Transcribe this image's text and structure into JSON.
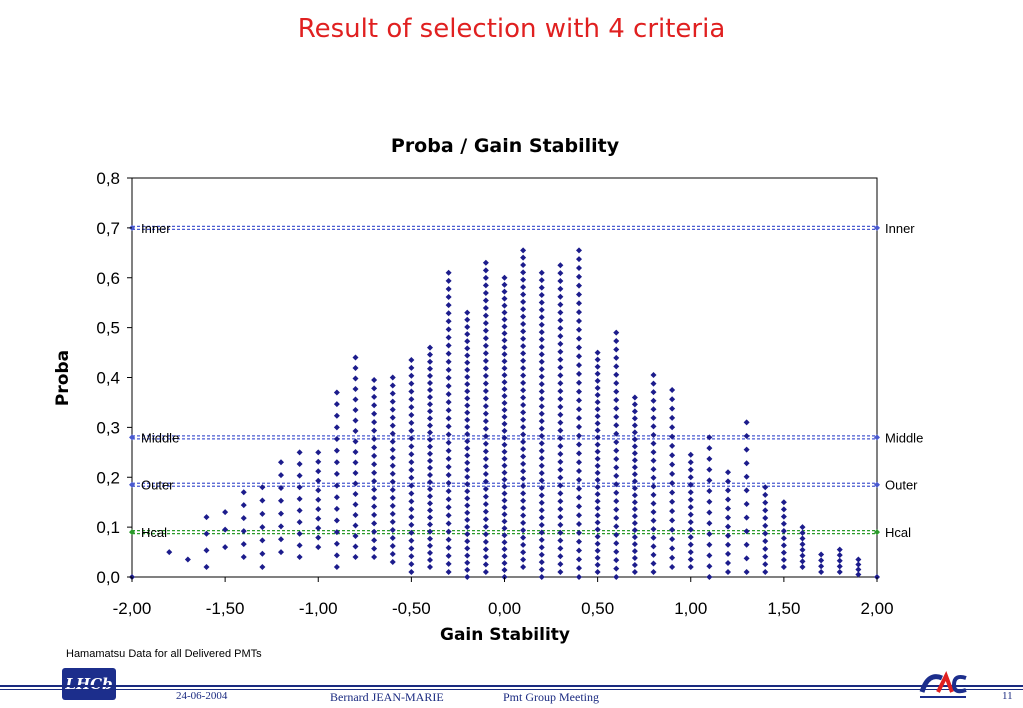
{
  "slide": {
    "title": "Result of selection with 4 criteria",
    "note": "Hamamatsu Data for all Delivered PMTs"
  },
  "footer": {
    "date": "24-06-2004",
    "author": "Bernard JEAN-MARIE",
    "meeting": "Pmt Group Meeting",
    "page": "11",
    "logo_left_text": "LHCb",
    "logo_right_text": "CAC"
  },
  "colors": {
    "title": "#e02020",
    "points": "#1c1c8c",
    "ref_blue": "#4a5ad0",
    "ref_green": "#2a9a2a"
  },
  "chart_data": {
    "type": "scatter",
    "title": "Proba / Gain Stability",
    "xlabel": "Gain Stability",
    "ylabel": "Proba",
    "xlim": [
      -2.0,
      2.0
    ],
    "ylim": [
      0.0,
      0.8
    ],
    "x_ticks": [
      "-2,00",
      "-1,50",
      "-1,00",
      "-0,50",
      "0,00",
      "0,50",
      "1,00",
      "1,50",
      "2,00"
    ],
    "y_ticks": [
      "0,0",
      "0,1",
      "0,2",
      "0,3",
      "0,4",
      "0,5",
      "0,6",
      "0,7",
      "0,8"
    ],
    "grid": false,
    "reference_lines": [
      {
        "name": "Inner",
        "y": 0.7,
        "color": "#4a5ad0"
      },
      {
        "name": "Middle",
        "y": 0.28,
        "color": "#4a5ad0"
      },
      {
        "name": "Outer",
        "y": 0.185,
        "color": "#4a5ad0"
      },
      {
        "name": "Hcal",
        "y": 0.09,
        "color": "#2a9a2a"
      }
    ],
    "columns": [
      {
        "x": -2.0,
        "ymin": 0.0,
        "ymax": 0.0,
        "n": 1
      },
      {
        "x": -1.8,
        "ymin": 0.05,
        "ymax": 0.05,
        "n": 1
      },
      {
        "x": -1.7,
        "ymin": 0.035,
        "ymax": 0.035,
        "n": 1
      },
      {
        "x": -1.6,
        "ymin": 0.02,
        "ymax": 0.12,
        "n": 4
      },
      {
        "x": -1.5,
        "ymin": 0.06,
        "ymax": 0.13,
        "n": 3
      },
      {
        "x": -1.4,
        "ymin": 0.04,
        "ymax": 0.17,
        "n": 6
      },
      {
        "x": -1.3,
        "ymin": 0.02,
        "ymax": 0.18,
        "n": 7
      },
      {
        "x": -1.2,
        "ymin": 0.05,
        "ymax": 0.23,
        "n": 8
      },
      {
        "x": -1.1,
        "ymin": 0.04,
        "ymax": 0.25,
        "n": 10
      },
      {
        "x": -1.0,
        "ymin": 0.06,
        "ymax": 0.25,
        "n": 11
      },
      {
        "x": -0.9,
        "ymin": 0.02,
        "ymax": 0.37,
        "n": 16
      },
      {
        "x": -0.8,
        "ymin": 0.04,
        "ymax": 0.44,
        "n": 20
      },
      {
        "x": -0.7,
        "ymin": 0.04,
        "ymax": 0.395,
        "n": 22
      },
      {
        "x": -0.6,
        "ymin": 0.03,
        "ymax": 0.4,
        "n": 24
      },
      {
        "x": -0.5,
        "ymin": 0.01,
        "ymax": 0.435,
        "n": 28
      },
      {
        "x": -0.4,
        "ymin": 0.02,
        "ymax": 0.46,
        "n": 32
      },
      {
        "x": -0.3,
        "ymin": 0.01,
        "ymax": 0.61,
        "n": 38
      },
      {
        "x": -0.2,
        "ymin": 0.0,
        "ymax": 0.53,
        "n": 38
      },
      {
        "x": -0.1,
        "ymin": 0.01,
        "ymax": 0.63,
        "n": 42
      },
      {
        "x": 0.0,
        "ymin": 0.0,
        "ymax": 0.6,
        "n": 44
      },
      {
        "x": 0.1,
        "ymin": 0.02,
        "ymax": 0.655,
        "n": 44
      },
      {
        "x": 0.2,
        "ymin": 0.0,
        "ymax": 0.61,
        "n": 42
      },
      {
        "x": 0.3,
        "ymin": 0.01,
        "ymax": 0.625,
        "n": 40
      },
      {
        "x": 0.4,
        "ymin": 0.0,
        "ymax": 0.655,
        "n": 38
      },
      {
        "x": 0.5,
        "ymin": 0.01,
        "ymax": 0.45,
        "n": 32
      },
      {
        "x": 0.6,
        "ymin": 0.0,
        "ymax": 0.49,
        "n": 30
      },
      {
        "x": 0.7,
        "ymin": 0.01,
        "ymax": 0.36,
        "n": 26
      },
      {
        "x": 0.8,
        "ymin": 0.01,
        "ymax": 0.405,
        "n": 24
      },
      {
        "x": 0.9,
        "ymin": 0.02,
        "ymax": 0.375,
        "n": 20
      },
      {
        "x": 1.0,
        "ymin": 0.02,
        "ymax": 0.245,
        "n": 16
      },
      {
        "x": 1.1,
        "ymin": 0.0,
        "ymax": 0.28,
        "n": 14
      },
      {
        "x": 1.2,
        "ymin": 0.01,
        "ymax": 0.21,
        "n": 12
      },
      {
        "x": 1.3,
        "ymin": 0.01,
        "ymax": 0.31,
        "n": 12
      },
      {
        "x": 1.4,
        "ymin": 0.01,
        "ymax": 0.18,
        "n": 12
      },
      {
        "x": 1.5,
        "ymin": 0.02,
        "ymax": 0.15,
        "n": 10
      },
      {
        "x": 1.6,
        "ymin": 0.02,
        "ymax": 0.1,
        "n": 8
      },
      {
        "x": 1.7,
        "ymin": 0.01,
        "ymax": 0.045,
        "n": 4
      },
      {
        "x": 1.8,
        "ymin": 0.01,
        "ymax": 0.055,
        "n": 5
      },
      {
        "x": 1.9,
        "ymin": 0.005,
        "ymax": 0.035,
        "n": 4
      },
      {
        "x": 2.0,
        "ymin": 0.0,
        "ymax": 0.0,
        "n": 1
      }
    ]
  }
}
